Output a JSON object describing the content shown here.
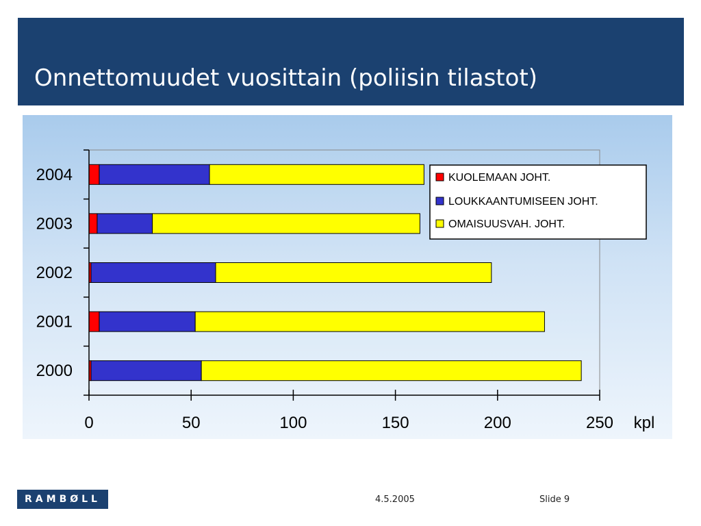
{
  "slide": {
    "title": "Onnettomuudet vuosittain (poliisin tilastot)",
    "logo_text": "RAMBØLL",
    "date": "4.5.2005",
    "slide_label": "Slide 9"
  },
  "colors": {
    "header_bg": "#1b4170",
    "series": [
      "#ff0000",
      "#3333cc",
      "#ffff00"
    ]
  },
  "chart_data": {
    "type": "bar",
    "orientation": "horizontal",
    "stacked": true,
    "title": "",
    "xlabel": "",
    "ylabel": "",
    "x_unit": "kpl",
    "xlim": [
      0,
      250
    ],
    "xticks": [
      0,
      50,
      100,
      150,
      200,
      250
    ],
    "categories": [
      "2004",
      "2003",
      "2002",
      "2001",
      "2000"
    ],
    "series": [
      {
        "name": "KUOLEMAAN JOHT.",
        "color": "#ff0000",
        "values": [
          5,
          4,
          1,
          5,
          1
        ]
      },
      {
        "name": "LOUKKAANTUMISEEN JOHT.",
        "color": "#3333cc",
        "values": [
          54,
          27,
          61,
          47,
          54
        ]
      },
      {
        "name": "OMAISUUSVAH. JOHT.",
        "color": "#ffff00",
        "values": [
          105,
          131,
          135,
          171,
          186
        ]
      }
    ],
    "legend_position": "top-right",
    "grid": false
  }
}
